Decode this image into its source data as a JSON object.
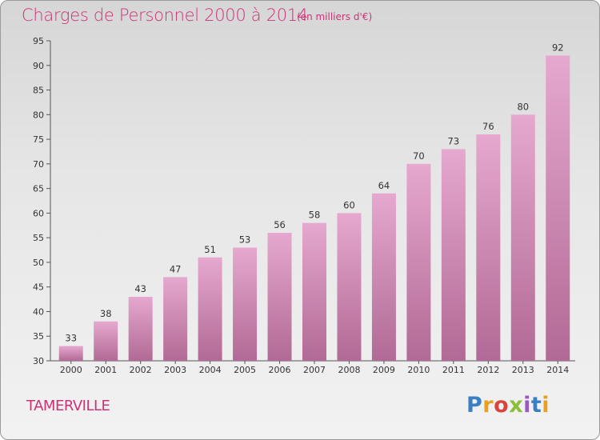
{
  "header": {
    "title": "Charges de Personnel 2000 à 2014",
    "subtitle": "(en milliers d'€)"
  },
  "footer": {
    "commune": "TAMERVILLE",
    "logo_letters": [
      "P",
      "r",
      "o",
      "x",
      "i",
      "t",
      "i"
    ],
    "logo_colors": [
      "#3a7fc1",
      "#e8a020",
      "#d9453a",
      "#8bbf3a",
      "#9a5bc0",
      "#3a7fc1",
      "#e8a020"
    ]
  },
  "colors": {
    "bar_top": "#e6a8cf",
    "bar_bottom": "#b16a95",
    "title": "#cc3377"
  },
  "chart_data": {
    "type": "bar",
    "title": "Charges de Personnel 2000 à 2014",
    "subtitle": "(en milliers d'€)",
    "categories": [
      "2000",
      "2001",
      "2002",
      "2003",
      "2004",
      "2005",
      "2006",
      "2007",
      "2008",
      "2009",
      "2010",
      "2011",
      "2012",
      "2013",
      "2014"
    ],
    "values": [
      33,
      38,
      43,
      47,
      51,
      53,
      56,
      58,
      60,
      64,
      70,
      73,
      76,
      80,
      92
    ],
    "ylim": [
      30,
      95
    ],
    "yticks": [
      30,
      35,
      40,
      45,
      50,
      55,
      60,
      65,
      70,
      75,
      80,
      85,
      90,
      95
    ],
    "grid": false,
    "legend": "none"
  }
}
